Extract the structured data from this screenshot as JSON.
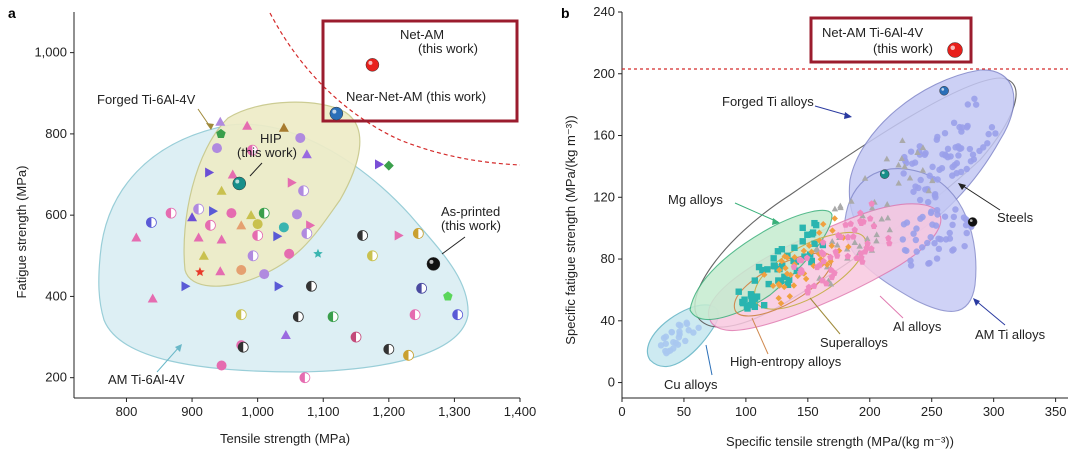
{
  "chart_data": [
    {
      "panel": "a",
      "type": "scatter",
      "xlabel": "Tensile strength (MPa)",
      "ylabel": "Fatigue strength (MPa)",
      "xlim": [
        720,
        1400
      ],
      "ylim": [
        150,
        1100
      ],
      "x_ticks": [
        "800",
        "900",
        "1,000",
        "1,100",
        "1,200",
        "1,300",
        "1,400"
      ],
      "y_ticks": [
        "200",
        "400",
        "600",
        "800",
        "1,000"
      ],
      "highlight_points": [
        {
          "name": "Net-AM",
          "sub": "(this work)",
          "x": 1175,
          "y": 970,
          "color": "#e8201c"
        },
        {
          "name": "Near-Net-AM (this work)",
          "x": 1120,
          "y": 850,
          "color": "#2a6fb8"
        },
        {
          "name": "HIP",
          "sub": "(this work)",
          "x": 972,
          "y": 678,
          "color": "#178f8a"
        },
        {
          "name": "As-printed",
          "sub": "(this work)",
          "x": 1268,
          "y": 480,
          "color": "#111111"
        }
      ],
      "regions": [
        {
          "name": "Forged Ti-6Al-4V",
          "fill": "#eeecc7",
          "stroke": "#c8c88a"
        },
        {
          "name": "AM Ti-6Al-4V",
          "fill": "#daeef3",
          "stroke": "#8fc9d4"
        }
      ],
      "scatter": [
        {
          "x": 943,
          "y": 830,
          "c": "#b08adf",
          "s": "tri"
        },
        {
          "x": 984,
          "y": 820,
          "c": "#e56cb0",
          "s": "tri"
        },
        {
          "x": 1040,
          "y": 815,
          "c": "#a77b2e",
          "s": "tri"
        },
        {
          "x": 1065,
          "y": 790,
          "c": "#b08adf",
          "s": "circ"
        },
        {
          "x": 944,
          "y": 800,
          "c": "#3a9f4c",
          "s": "pent"
        },
        {
          "x": 1185,
          "y": 725,
          "c": "#7a4fd6",
          "s": "rtri"
        },
        {
          "x": 1200,
          "y": 722,
          "c": "#3a9f4c",
          "s": "diam"
        },
        {
          "x": 938,
          "y": 765,
          "c": "#b08adf",
          "s": "circ"
        },
        {
          "x": 992,
          "y": 760,
          "c": "#e56cb0",
          "s": "half"
        },
        {
          "x": 1075,
          "y": 750,
          "c": "#9a6ae0",
          "s": "tri"
        },
        {
          "x": 926,
          "y": 705,
          "c": "#6b4fd6",
          "s": "rtri"
        },
        {
          "x": 962,
          "y": 700,
          "c": "#e56cb0",
          "s": "tri"
        },
        {
          "x": 1052,
          "y": 680,
          "c": "#e56cb0",
          "s": "rtri"
        },
        {
          "x": 945,
          "y": 660,
          "c": "#c9c14f",
          "s": "tri"
        },
        {
          "x": 1070,
          "y": 660,
          "c": "#b08adf",
          "s": "half"
        },
        {
          "x": 910,
          "y": 615,
          "c": "#b08adf",
          "s": "half"
        },
        {
          "x": 932,
          "y": 610,
          "c": "#5a5ad6",
          "s": "rtri"
        },
        {
          "x": 960,
          "y": 605,
          "c": "#e56cb0",
          "s": "circ"
        },
        {
          "x": 990,
          "y": 600,
          "c": "#c9c14f",
          "s": "tri"
        },
        {
          "x": 1010,
          "y": 605,
          "c": "#3a9f4c",
          "s": "half"
        },
        {
          "x": 1060,
          "y": 602,
          "c": "#b08adf",
          "s": "circ"
        },
        {
          "x": 838,
          "y": 582,
          "c": "#5a5ad6",
          "s": "half"
        },
        {
          "x": 868,
          "y": 605,
          "c": "#e56cb0",
          "s": "half"
        },
        {
          "x": 900,
          "y": 595,
          "c": "#6b4fd6",
          "s": "tri"
        },
        {
          "x": 928,
          "y": 575,
          "c": "#e56cb0",
          "s": "half"
        },
        {
          "x": 975,
          "y": 575,
          "c": "#e5a070",
          "s": "tri"
        },
        {
          "x": 1000,
          "y": 578,
          "c": "#c9c14f",
          "s": "circ"
        },
        {
          "x": 1040,
          "y": 570,
          "c": "#3ab5b0",
          "s": "circ"
        },
        {
          "x": 1080,
          "y": 575,
          "c": "#e56cb0",
          "s": "rtri"
        },
        {
          "x": 815,
          "y": 545,
          "c": "#e56cb0",
          "s": "tri"
        },
        {
          "x": 910,
          "y": 545,
          "c": "#e56cb0",
          "s": "tri"
        },
        {
          "x": 945,
          "y": 540,
          "c": "#e56cb0",
          "s": "tri"
        },
        {
          "x": 1000,
          "y": 550,
          "c": "#e56cb0",
          "s": "half"
        },
        {
          "x": 1030,
          "y": 548,
          "c": "#5a5ad6",
          "s": "rtri"
        },
        {
          "x": 1075,
          "y": 555,
          "c": "#b08adf",
          "s": "half"
        },
        {
          "x": 1160,
          "y": 550,
          "c": "#333333",
          "s": "half"
        },
        {
          "x": 1215,
          "y": 550,
          "c": "#e56cb0",
          "s": "rtri"
        },
        {
          "x": 1245,
          "y": 555,
          "c": "#c9a030",
          "s": "half"
        },
        {
          "x": 918,
          "y": 500,
          "c": "#c9c14f",
          "s": "tri"
        },
        {
          "x": 993,
          "y": 500,
          "c": "#b08adf",
          "s": "half"
        },
        {
          "x": 1048,
          "y": 505,
          "c": "#e56cb0",
          "s": "circ"
        },
        {
          "x": 1092,
          "y": 505,
          "c": "#3ab5b0",
          "s": "star"
        },
        {
          "x": 1175,
          "y": 500,
          "c": "#c9c14f",
          "s": "half"
        },
        {
          "x": 912,
          "y": 460,
          "c": "#e83a2a",
          "s": "star"
        },
        {
          "x": 943,
          "y": 462,
          "c": "#e56cb0",
          "s": "tri"
        },
        {
          "x": 975,
          "y": 465,
          "c": "#e5a070",
          "s": "circ"
        },
        {
          "x": 1010,
          "y": 455,
          "c": "#b08adf",
          "s": "circ"
        },
        {
          "x": 890,
          "y": 425,
          "c": "#5a5ad6",
          "s": "rtri"
        },
        {
          "x": 1032,
          "y": 425,
          "c": "#5a5ad6",
          "s": "rtri"
        },
        {
          "x": 1082,
          "y": 425,
          "c": "#333333",
          "s": "half"
        },
        {
          "x": 1250,
          "y": 420,
          "c": "#4a4aa0",
          "s": "half"
        },
        {
          "x": 1290,
          "y": 400,
          "c": "#5ad65a",
          "s": "pent"
        },
        {
          "x": 840,
          "y": 395,
          "c": "#e56cb0",
          "s": "tri"
        },
        {
          "x": 975,
          "y": 355,
          "c": "#c9c14f",
          "s": "half"
        },
        {
          "x": 1062,
          "y": 350,
          "c": "#333333",
          "s": "half"
        },
        {
          "x": 1115,
          "y": 350,
          "c": "#3a9f4c",
          "s": "half"
        },
        {
          "x": 1240,
          "y": 355,
          "c": "#e56cb0",
          "s": "half"
        },
        {
          "x": 1305,
          "y": 355,
          "c": "#5a5ad6",
          "s": "half"
        },
        {
          "x": 1043,
          "y": 305,
          "c": "#9a6ae0",
          "s": "tri"
        },
        {
          "x": 1150,
          "y": 300,
          "c": "#c34a7a",
          "s": "half"
        },
        {
          "x": 975,
          "y": 280,
          "c": "#e56cb0",
          "s": "circ"
        },
        {
          "x": 978,
          "y": 275,
          "c": "#333333",
          "s": "half"
        },
        {
          "x": 1200,
          "y": 270,
          "c": "#333333",
          "s": "half"
        },
        {
          "x": 1230,
          "y": 255,
          "c": "#c9a030",
          "s": "half"
        },
        {
          "x": 945,
          "y": 230,
          "c": "#e56cb0",
          "s": "circ"
        },
        {
          "x": 1072,
          "y": 200,
          "c": "#e56cb0",
          "s": "half"
        }
      ]
    },
    {
      "panel": "b",
      "type": "scatter",
      "xlabel": "Specific tensile strength (MPa/(kg m⁻³))",
      "ylabel": "Specific fatigue strength (MPa/(kg m⁻³))",
      "xlim": [
        0,
        360
      ],
      "ylim": [
        -10,
        240
      ],
      "x_ticks": [
        "0",
        "50",
        "100",
        "150",
        "200",
        "250",
        "300",
        "350"
      ],
      "y_ticks": [
        "0",
        "40",
        "80",
        "120",
        "160",
        "200",
        "240"
      ],
      "highlight_points": [
        {
          "name": "Net-AM Ti-6Al-4V",
          "sub": "(this work)",
          "x": 272,
          "y": 207,
          "color": "#e8201c"
        },
        {
          "x": 260,
          "y": 189,
          "color": "#2a6fb8"
        },
        {
          "x": 212,
          "y": 135,
          "color": "#178f8a"
        },
        {
          "x": 283,
          "y": 104,
          "color": "#111111"
        }
      ],
      "regions": [
        {
          "name": "Forged Ti alloys",
          "fill": "#c4c8f4",
          "stroke": "#7e84c8"
        },
        {
          "name": "Steels",
          "fill": "none",
          "stroke": "#666666"
        },
        {
          "name": "Mg alloys",
          "fill": "#c5ecd0",
          "stroke": "#3ab07a"
        },
        {
          "name": "Al alloys",
          "fill": "#f8c8e0",
          "stroke": "#e07ab0"
        },
        {
          "name": "AM Ti alloys",
          "fill": "#c4c8f4",
          "stroke": "#7e84c8"
        },
        {
          "name": "Cu alloys",
          "fill": "#c8e8f0",
          "stroke": "#6ab8c8"
        },
        {
          "name": "Superalloys",
          "fill": "none",
          "stroke": "#c8b050"
        },
        {
          "name": "High-entropy alloys",
          "fill": "none",
          "stroke": "#d08a50"
        }
      ],
      "labels": [
        "Forged Ti alloys",
        "Mg alloys",
        "Steels",
        "Al alloys",
        "AM Ti alloys",
        "Superalloys",
        "High-entropy alloys",
        "Cu alloys"
      ],
      "threshold_y": 206
    }
  ],
  "panel_labels": {
    "a": "a",
    "b": "b"
  },
  "colors": {
    "box": "#9b1c2e",
    "dash": "#d42a2a"
  }
}
